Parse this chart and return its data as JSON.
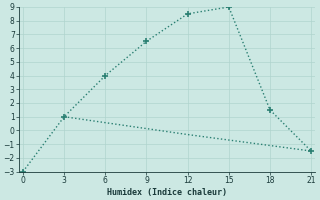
{
  "xlabel": "Humidex (Indice chaleur)",
  "line1_x": [
    0,
    3,
    6,
    9,
    12,
    15,
    18,
    21
  ],
  "line1_y": [
    -3,
    1,
    4,
    6.5,
    8.5,
    9,
    1.5,
    -1.5
  ],
  "line2_x": [
    3,
    12,
    21
  ],
  "line2_y": [
    1,
    -0.3,
    -1.5
  ],
  "xlim": [
    -0.3,
    21.3
  ],
  "ylim": [
    -3,
    9
  ],
  "xticks": [
    0,
    3,
    6,
    9,
    12,
    15,
    18,
    21
  ],
  "yticks": [
    -3,
    -2,
    -1,
    0,
    1,
    2,
    3,
    4,
    5,
    6,
    7,
    8,
    9
  ],
  "line_color": "#2a7f72",
  "bg_color": "#cce8e3",
  "grid_color": "#b0d4ce",
  "font_color": "#1a3a3a",
  "marker": "+",
  "marker_size": 5,
  "line_width": 1.0
}
